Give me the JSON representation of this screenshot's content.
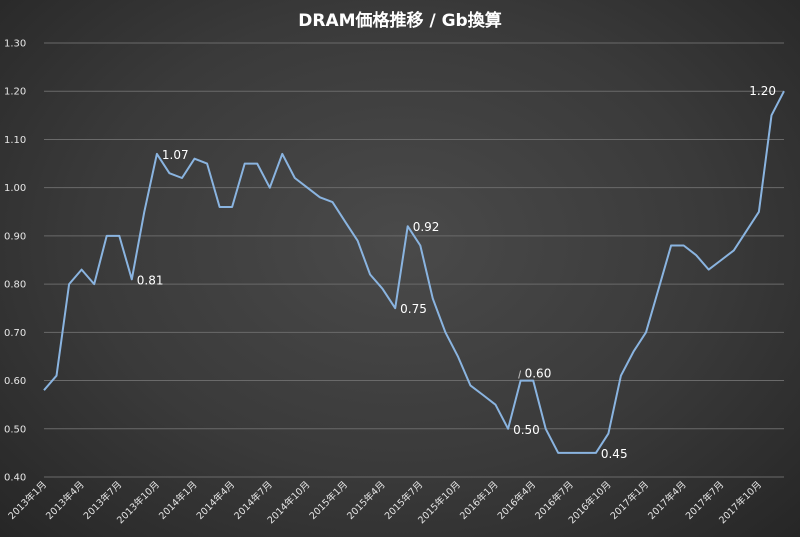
{
  "chart_data": {
    "type": "line",
    "title": "DRAM価格推移 / Gb換算",
    "xlabel": "",
    "ylabel": "",
    "ylim": [
      0.4,
      1.3
    ],
    "yticks": [
      "0.40",
      "0.50",
      "0.60",
      "0.70",
      "0.80",
      "0.90",
      "1.00",
      "1.10",
      "1.20",
      "1.30"
    ],
    "grid": true,
    "legend": "none",
    "line_color": "#8ab4e0",
    "x_tick_labels": [
      {
        "index": 0,
        "label": "2013年1月"
      },
      {
        "index": 3,
        "label": "2013年4月"
      },
      {
        "index": 6,
        "label": "2013年7月"
      },
      {
        "index": 9,
        "label": "2013年10月"
      },
      {
        "index": 12,
        "label": "2014年1月"
      },
      {
        "index": 15,
        "label": "2014年4月"
      },
      {
        "index": 18,
        "label": "2014年7月"
      },
      {
        "index": 21,
        "label": "2014年10月"
      },
      {
        "index": 24,
        "label": "2015年1月"
      },
      {
        "index": 27,
        "label": "2015年4月"
      },
      {
        "index": 30,
        "label": "2015年7月"
      },
      {
        "index": 33,
        "label": "2015年10月"
      },
      {
        "index": 36,
        "label": "2016年1月"
      },
      {
        "index": 39,
        "label": "2016年4月"
      },
      {
        "index": 42,
        "label": "2016年7月"
      },
      {
        "index": 45,
        "label": "2016年10月"
      },
      {
        "index": 48,
        "label": "2017年1月"
      },
      {
        "index": 51,
        "label": "2017年4月"
      },
      {
        "index": 54,
        "label": "2017年7月"
      },
      {
        "index": 57,
        "label": "2017年10月"
      }
    ],
    "values": [
      0.58,
      0.61,
      0.8,
      0.83,
      0.8,
      0.9,
      0.9,
      0.81,
      0.95,
      1.07,
      1.03,
      1.02,
      1.06,
      1.05,
      0.96,
      0.96,
      1.05,
      1.05,
      1.0,
      1.07,
      1.02,
      1.0,
      0.98,
      0.97,
      0.93,
      0.89,
      0.82,
      0.79,
      0.75,
      0.92,
      0.88,
      0.77,
      0.7,
      0.65,
      0.59,
      0.57,
      0.55,
      0.5,
      0.6,
      0.6,
      0.5,
      0.45,
      0.45,
      0.45,
      0.45,
      0.49,
      0.61,
      0.66,
      0.7,
      0.79,
      0.88,
      0.88,
      0.86,
      0.83,
      0.85,
      0.87,
      0.91,
      0.95,
      1.15,
      1.2
    ],
    "annotations": [
      {
        "index": 7,
        "text": "0.81",
        "pos": "right"
      },
      {
        "index": 9,
        "text": "1.07",
        "pos": "right"
      },
      {
        "index": 28,
        "text": "0.75",
        "pos": "right"
      },
      {
        "index": 29,
        "text": "0.92",
        "pos": "right"
      },
      {
        "index": 37,
        "text": "0.50",
        "pos": "right"
      },
      {
        "index": 38,
        "text": "0.60",
        "pos": "right-up"
      },
      {
        "index": 44,
        "text": "0.45",
        "pos": "right"
      },
      {
        "index": 59,
        "text": "1.20",
        "pos": "left"
      }
    ]
  }
}
